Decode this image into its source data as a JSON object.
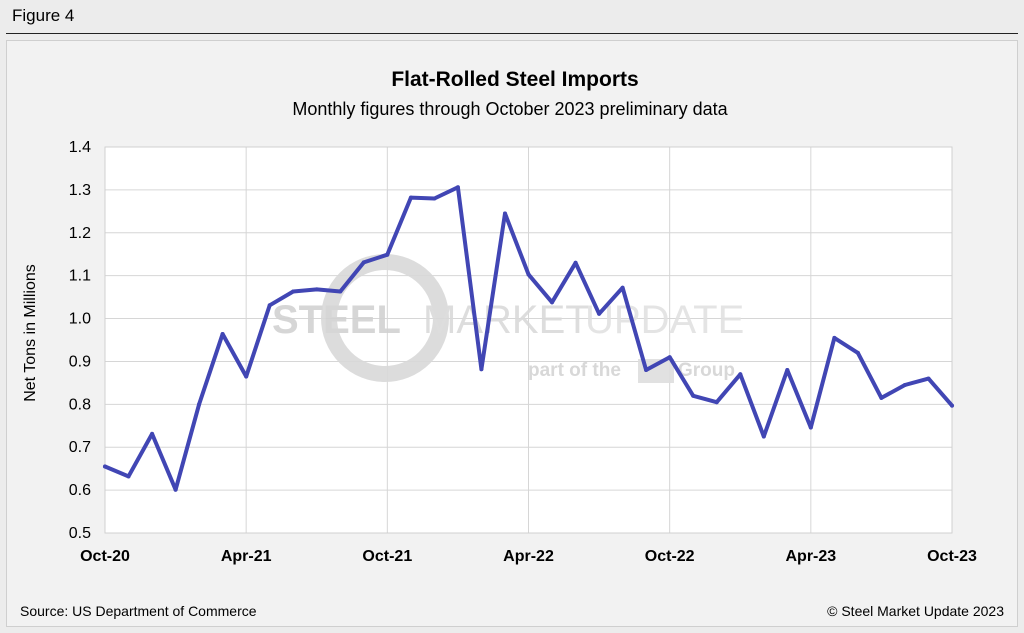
{
  "figure_label": "Figure 4",
  "source": "Source: US Department of Commerce",
  "copyright": "© Steel Market Update 2023",
  "watermark": {
    "word1": "STEEL",
    "word2": "MARKET",
    "word3": "UPDATE",
    "tagline": "part of the",
    "tagline_end": "Group"
  },
  "colors": {
    "line": "#4146b4",
    "grid": "#d6d6d6",
    "plot_bg": "#ffffff"
  },
  "chart_data": {
    "type": "line",
    "title": "Flat-Rolled Steel Imports",
    "subtitle": "Monthly figures through October 2023 preliminary data",
    "xlabel": "",
    "ylabel": "Net Tons in Millions",
    "ylim": [
      0.5,
      1.4
    ],
    "yticks": [
      "0.5",
      "0.6",
      "0.7",
      "0.8",
      "0.9",
      "1.0",
      "1.1",
      "1.2",
      "1.3",
      "1.4"
    ],
    "xtick_labels": [
      "Oct-20",
      "Apr-21",
      "Oct-21",
      "Apr-22",
      "Oct-22",
      "Apr-23",
      "Oct-23"
    ],
    "grid": true,
    "x": [
      "Oct-20",
      "Nov-20",
      "Dec-20",
      "Jan-21",
      "Feb-21",
      "Mar-21",
      "Apr-21",
      "May-21",
      "Jun-21",
      "Jul-21",
      "Aug-21",
      "Sep-21",
      "Oct-21",
      "Nov-21",
      "Dec-21",
      "Jan-22",
      "Feb-22",
      "Mar-22",
      "Apr-22",
      "May-22",
      "Jun-22",
      "Jul-22",
      "Aug-22",
      "Sep-22",
      "Oct-22",
      "Nov-22",
      "Dec-22",
      "Jan-23",
      "Feb-23",
      "Mar-23",
      "Apr-23",
      "May-23",
      "Jun-23",
      "Jul-23",
      "Aug-23",
      "Sep-23",
      "Oct-23"
    ],
    "series": [
      {
        "values": [
          0.655,
          0.632,
          0.731,
          0.601,
          0.8,
          0.964,
          0.865,
          1.031,
          1.063,
          1.068,
          1.063,
          1.131,
          1.149,
          1.282,
          1.28,
          1.306,
          0.882,
          1.245,
          1.103,
          1.038,
          1.13,
          1.011,
          1.072,
          0.88,
          0.91,
          0.82,
          0.805,
          0.87,
          0.725,
          0.88,
          0.746,
          0.955,
          0.92,
          0.815,
          0.845,
          0.86,
          0.797
        ]
      }
    ]
  }
}
